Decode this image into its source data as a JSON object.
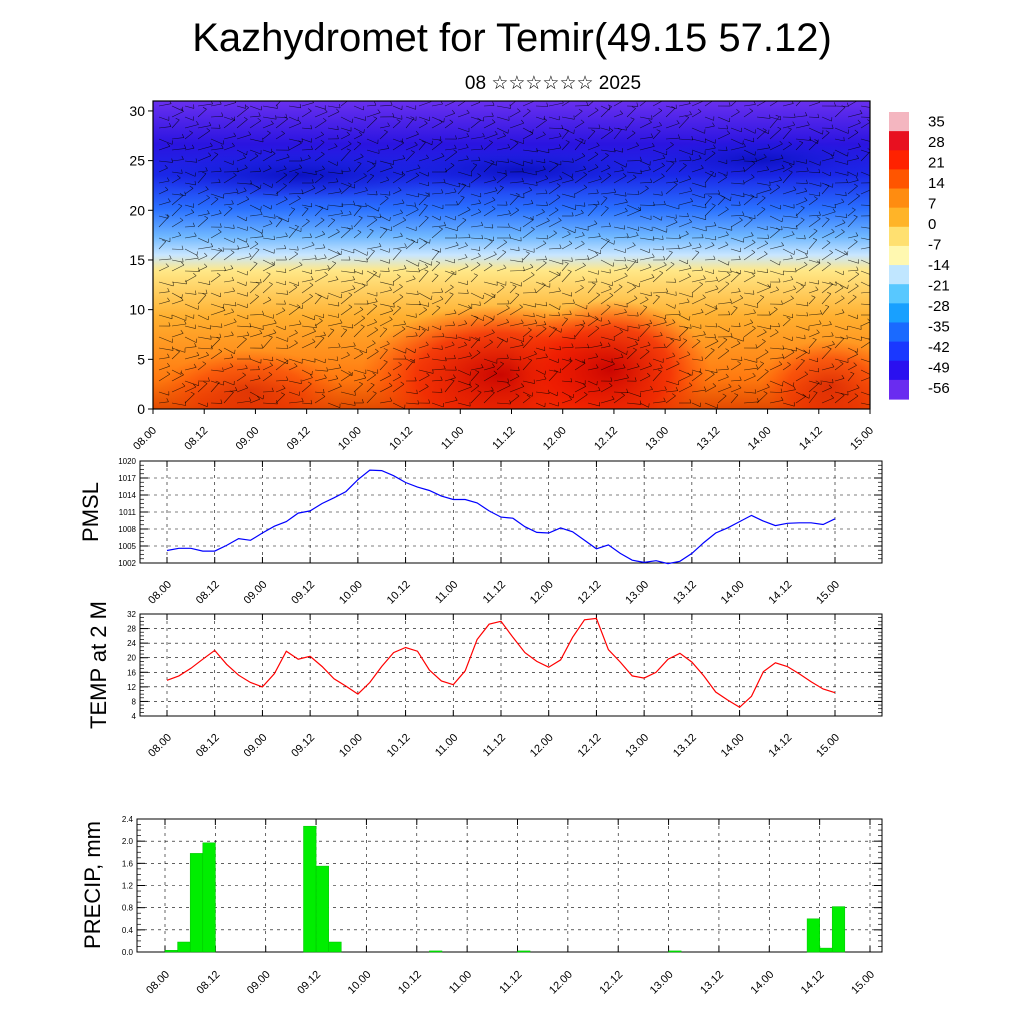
{
  "title": "Kazhydromet for Temir(49.15 57.12)",
  "subtitle": "08 ☆☆☆☆☆☆ 2025",
  "time_labels": [
    "08.00",
    "08.12",
    "09.00",
    "09.12",
    "10.00",
    "10.12",
    "11.00",
    "11.12",
    "12.00",
    "12.12",
    "13.00",
    "13.12",
    "14.00",
    "14.12",
    "15.00"
  ],
  "chart_data": [
    {
      "type": "heatmap",
      "title": "",
      "xlabel": "",
      "ylabel": "",
      "x": [
        "08.00",
        "08.12",
        "09.00",
        "09.12",
        "10.00",
        "10.12",
        "11.00",
        "11.12",
        "12.00",
        "12.12",
        "13.00",
        "13.12",
        "14.00",
        "14.12",
        "15.00"
      ],
      "yticks": [
        0,
        5,
        10,
        15,
        20,
        25,
        30
      ],
      "ylim": [
        0,
        31
      ],
      "colorbar_labels": [
        "35",
        "28",
        "21",
        "14",
        "7",
        "0",
        "-7",
        "-14",
        "-21",
        "-28",
        "-35",
        "-42",
        "-49",
        "-56"
      ],
      "overlay": "wind barbs",
      "colors": {
        "warm": "#ff2a00",
        "hot": "#c00000",
        "neutral": "#fff5a0",
        "cold": "#2840ff",
        "coldest": "#3000c8"
      }
    },
    {
      "type": "line",
      "title": "",
      "xlabel": "",
      "ylabel": "PMSL",
      "yticks": [
        "1002",
        "1005",
        "1008",
        "1011",
        "1014",
        "1017",
        "1020"
      ],
      "ylim": [
        1002,
        1020
      ],
      "color": "#0000ff",
      "series": [
        {
          "x": [
            0,
            3,
            6,
            9,
            12,
            15,
            18,
            21,
            24,
            27,
            30,
            33,
            36,
            39,
            42,
            45,
            48,
            51,
            54,
            57,
            60,
            63,
            66,
            69,
            72,
            75,
            78,
            81,
            84,
            87,
            90,
            93,
            96,
            99,
            102,
            105,
            108,
            111,
            114,
            117,
            120,
            123,
            126,
            129,
            132,
            135,
            138,
            141,
            144,
            147,
            150,
            153,
            156,
            159,
            162,
            165,
            168
          ],
          "values": [
            1004.2,
            1004.6,
            1004.6,
            1004.1,
            1004.1,
            1005.1,
            1006.3,
            1006.0,
            1007.3,
            1008.5,
            1009.3,
            1010.8,
            1011.2,
            1012.5,
            1013.5,
            1014.6,
            1016.7,
            1018.4,
            1018.3,
            1017.4,
            1016.2,
            1015.4,
            1014.8,
            1013.8,
            1013.2,
            1013.2,
            1012.6,
            1011.2,
            1010.1,
            1009.9,
            1008.4,
            1007.4,
            1007.3,
            1008.2,
            1007.5,
            1006.0,
            1004.5,
            1005.2,
            1003.7,
            1002.5,
            1002.1,
            1002.4,
            1001.9,
            1002.3,
            1003.7,
            1005.6,
            1007.3,
            1008.2,
            1009.3,
            1010.4,
            1009.4,
            1008.6,
            1009.0,
            1009.1,
            1009.1,
            1008.8,
            1009.8
          ]
        }
      ]
    },
    {
      "type": "line",
      "title": "",
      "xlabel": "",
      "ylabel": "TEMP at 2 M",
      "yticks": [
        "4",
        "8",
        "12",
        "16",
        "20",
        "24",
        "28",
        "32"
      ],
      "ylim": [
        4,
        32
      ],
      "color": "#ff0000",
      "series": [
        {
          "x": [
            0,
            3,
            6,
            9,
            12,
            15,
            18,
            21,
            24,
            27,
            30,
            33,
            36,
            39,
            42,
            45,
            48,
            51,
            54,
            57,
            60,
            63,
            66,
            69,
            72,
            75,
            78,
            81,
            84,
            87,
            90,
            93,
            96,
            99,
            102,
            105,
            108,
            111,
            114,
            117,
            120,
            123,
            126,
            129,
            132,
            135,
            138,
            141,
            144,
            147,
            150,
            153,
            156,
            159,
            162,
            165,
            168
          ],
          "values": [
            13.8,
            15.0,
            17.1,
            19.6,
            22.0,
            18.2,
            15.2,
            13.2,
            12.0,
            15.6,
            21.8,
            19.6,
            20.4,
            17.6,
            14.2,
            12.2,
            10.0,
            13.2,
            17.6,
            21.4,
            22.8,
            21.8,
            16.6,
            13.6,
            12.6,
            16.4,
            25.0,
            29.2,
            30.0,
            25.6,
            21.4,
            19.0,
            17.4,
            19.4,
            25.6,
            30.4,
            30.8,
            22.2,
            18.8,
            15.0,
            14.4,
            16.0,
            19.6,
            21.2,
            18.8,
            15.0,
            10.6,
            8.4,
            6.4,
            9.4,
            16.2,
            18.6,
            17.6,
            15.6,
            13.4,
            11.4,
            10.4
          ]
        }
      ]
    },
    {
      "type": "bar",
      "title": "",
      "xlabel": "",
      "ylabel": "PRECIP, mm",
      "yticks": [
        "0.0",
        "0.4",
        "0.8",
        "1.2",
        "1.6",
        "2.0",
        "2.4"
      ],
      "ylim": [
        0,
        2.4
      ],
      "color": "#00ee00",
      "bars": [
        {
          "x": 3,
          "value": 0.03
        },
        {
          "x": 6,
          "value": 0.18
        },
        {
          "x": 9,
          "value": 1.78
        },
        {
          "x": 12,
          "value": 1.97
        },
        {
          "x": 36,
          "value": 2.27
        },
        {
          "x": 39,
          "value": 1.55
        },
        {
          "x": 42,
          "value": 0.18
        },
        {
          "x": 66,
          "value": 0.02
        },
        {
          "x": 87,
          "value": 0.02
        },
        {
          "x": 123,
          "value": 0.02
        },
        {
          "x": 156,
          "value": 0.6
        },
        {
          "x": 159,
          "value": 0.07
        },
        {
          "x": 162,
          "value": 0.82
        }
      ]
    }
  ]
}
